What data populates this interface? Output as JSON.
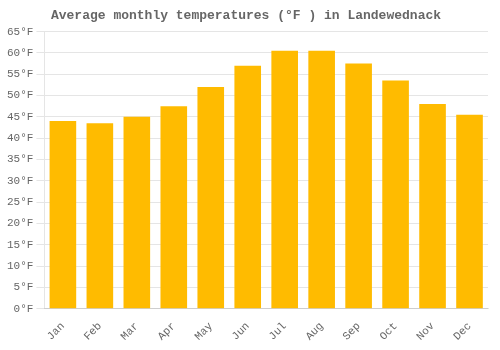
{
  "chart_data": {
    "type": "bar",
    "title": "Average monthly temperatures (°F ) in Landewednack",
    "categories": [
      "Jan",
      "Feb",
      "Mar",
      "Apr",
      "May",
      "Jun",
      "Jul",
      "Aug",
      "Sep",
      "Oct",
      "Nov",
      "Dec"
    ],
    "values": [
      44,
      43.5,
      45,
      47.5,
      52,
      57,
      60.5,
      60.5,
      57.5,
      53.5,
      48,
      45.5
    ],
    "color": "#FFBB00",
    "ylim": [
      0,
      65
    ],
    "yticks": [
      {
        "value": 0,
        "label": "0°F"
      },
      {
        "value": 5,
        "label": "5°F"
      },
      {
        "value": 10,
        "label": "10°F"
      },
      {
        "value": 15,
        "label": "15°F"
      },
      {
        "value": 20,
        "label": "20°F"
      },
      {
        "value": 25,
        "label": "25°F"
      },
      {
        "value": 30,
        "label": "30°F"
      },
      {
        "value": 35,
        "label": "35°F"
      },
      {
        "value": 40,
        "label": "40°F"
      },
      {
        "value": 45,
        "label": "45°F"
      },
      {
        "value": 50,
        "label": "50°F"
      },
      {
        "value": 55,
        "label": "55°F"
      },
      {
        "value": 60,
        "label": "60°F"
      },
      {
        "value": 65,
        "label": "65°F"
      }
    ],
    "grid": true
  }
}
